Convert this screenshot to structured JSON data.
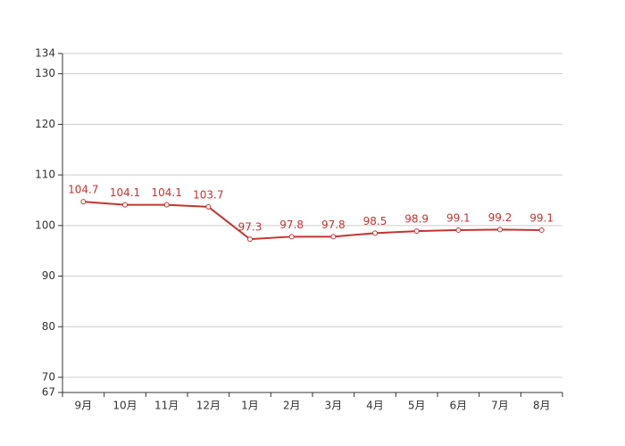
{
  "chart_data": {
    "type": "line",
    "categories": [
      "9月",
      "10月",
      "11月",
      "12月",
      "1月",
      "2月",
      "3月",
      "4月",
      "5月",
      "6月",
      "7月",
      "8月"
    ],
    "series": [
      {
        "color": "#c23531",
        "values": [
          104.7,
          104.1,
          104.1,
          103.7,
          97.3,
          97.8,
          97.8,
          98.5,
          98.9,
          99.1,
          99.2,
          99.1
        ]
      }
    ],
    "ylim": [
      67,
      134
    ],
    "yticks": [
      67,
      70,
      80,
      90,
      100,
      110,
      120,
      130,
      134
    ],
    "grid": true
  }
}
